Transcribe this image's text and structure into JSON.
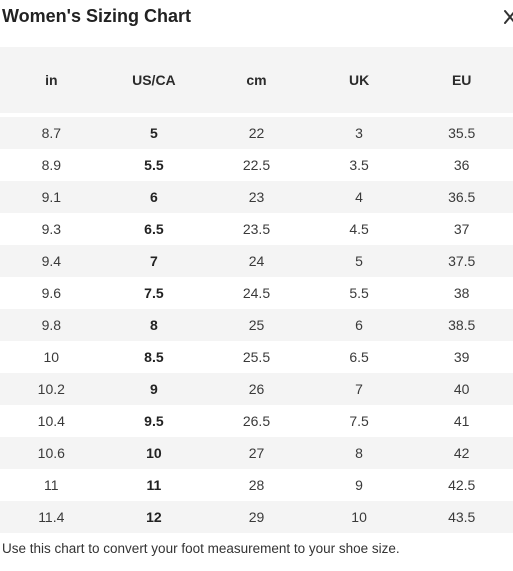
{
  "modal": {
    "title": "Women's Sizing Chart",
    "close_icon": "close-icon",
    "footnote": "Use this chart to convert your foot measurement to your shoe size."
  },
  "table": {
    "headers": [
      "in",
      "US/CA",
      "cm",
      "UK",
      "EU"
    ],
    "rows": [
      [
        "8.7",
        "5",
        "22",
        "3",
        "35.5"
      ],
      [
        "8.9",
        "5.5",
        "22.5",
        "3.5",
        "36"
      ],
      [
        "9.1",
        "6",
        "23",
        "4",
        "36.5"
      ],
      [
        "9.3",
        "6.5",
        "23.5",
        "4.5",
        "37"
      ],
      [
        "9.4",
        "7",
        "24",
        "5",
        "37.5"
      ],
      [
        "9.6",
        "7.5",
        "24.5",
        "5.5",
        "38"
      ],
      [
        "9.8",
        "8",
        "25",
        "6",
        "38.5"
      ],
      [
        "10",
        "8.5",
        "25.5",
        "6.5",
        "39"
      ],
      [
        "10.2",
        "9",
        "26",
        "7",
        "40"
      ],
      [
        "10.4",
        "9.5",
        "26.5",
        "7.5",
        "41"
      ],
      [
        "10.6",
        "10",
        "27",
        "8",
        "42"
      ],
      [
        "11",
        "11",
        "28",
        "9",
        "42.5"
      ],
      [
        "11.4",
        "12",
        "29",
        "10",
        "43.5"
      ]
    ]
  },
  "colors": {
    "stripe": "#f4f4f4",
    "text": "#2b2b2b"
  }
}
